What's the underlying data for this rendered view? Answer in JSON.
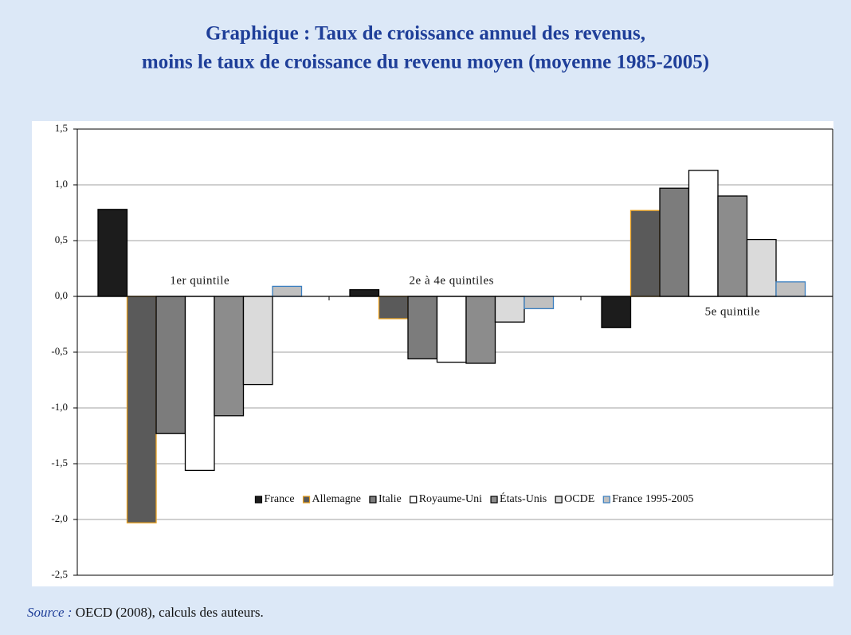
{
  "chart_data": {
    "type": "bar",
    "title": [
      "Graphique : Taux de croissance annuel des revenus,",
      "moins le taux de croissance du revenu moyen (moyenne 1985-2005)"
    ],
    "categories": [
      "1er quintile",
      "2e à 4e quintiles",
      "5e quintile"
    ],
    "series": [
      {
        "name": "France",
        "color": "#1c1c1c",
        "edgecolor": "#000000",
        "values": [
          0.78,
          0.06,
          -0.28
        ]
      },
      {
        "name": "Allemagne",
        "color": "#5a5a5a",
        "edgecolor": "#e8a020",
        "values": [
          -2.03,
          -0.2,
          0.77
        ]
      },
      {
        "name": "Italie",
        "color": "#7c7c7c",
        "edgecolor": "#000000",
        "values": [
          -1.23,
          -0.56,
          0.97
        ]
      },
      {
        "name": "Royaume-Uni",
        "color": "#ffffff",
        "edgecolor": "#000000",
        "values": [
          -1.56,
          -0.59,
          1.13
        ]
      },
      {
        "name": "États-Unis",
        "color": "#8c8c8c",
        "edgecolor": "#000000",
        "values": [
          -1.07,
          -0.6,
          0.9
        ]
      },
      {
        "name": "OCDE",
        "color": "#dadada",
        "edgecolor": "#000000",
        "values": [
          -0.79,
          -0.23,
          0.51
        ]
      },
      {
        "name": "France 1995-2005",
        "color": "#c0c0c0",
        "edgecolor": "#3a7fc0",
        "values": [
          0.09,
          -0.11,
          0.13
        ]
      }
    ],
    "ylim": [
      -2.5,
      1.5
    ],
    "yticks": [
      {
        "value": 1.5,
        "label": "1,5"
      },
      {
        "value": 1.0,
        "label": "1,0"
      },
      {
        "value": 0.5,
        "label": "0,5"
      },
      {
        "value": 0.0,
        "label": "0,0"
      },
      {
        "value": -0.5,
        "label": "-0,5"
      },
      {
        "value": -1.0,
        "label": "-1,0"
      },
      {
        "value": -1.5,
        "label": "-1,5"
      },
      {
        "value": -2.0,
        "label": "-2,0"
      },
      {
        "value": -2.5,
        "label": "-2,5"
      }
    ],
    "grid": true,
    "legend": "lower center",
    "source_label": "Source :",
    "source": "OECD (2008), calculs des auteurs."
  }
}
